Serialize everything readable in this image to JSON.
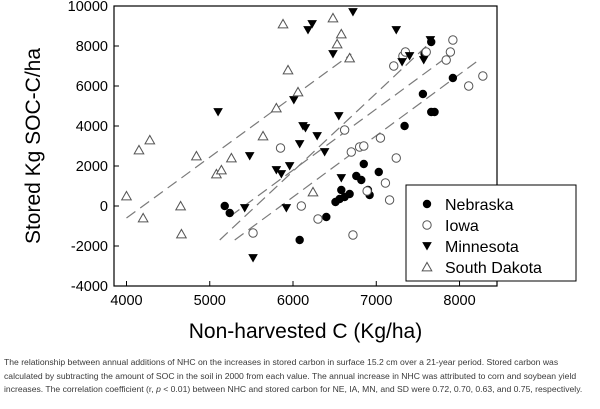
{
  "chart_data": {
    "type": "scatter",
    "xlabel": "Non-harvested C (Kg/ha)",
    "ylabel": "Stored Kg SOC-C/ha",
    "xlim": [
      3850,
      8450
    ],
    "ylim": [
      -4000,
      10000
    ],
    "x_ticks": [
      4000,
      5000,
      6000,
      7000,
      8000
    ],
    "y_ticks": [
      -4000,
      -2000,
      0,
      2000,
      4000,
      6000,
      8000,
      10000
    ],
    "legend_position": "bottom-right",
    "series": [
      {
        "name": "Nebraska",
        "marker": "filled-circle",
        "points": [
          [
            5180,
            0
          ],
          [
            5240,
            -350
          ],
          [
            6080,
            -1700
          ],
          [
            6400,
            -550
          ],
          [
            6510,
            200
          ],
          [
            6560,
            350
          ],
          [
            6580,
            800
          ],
          [
            6620,
            450
          ],
          [
            6680,
            600
          ],
          [
            6760,
            1500
          ],
          [
            6820,
            1300
          ],
          [
            6850,
            2100
          ],
          [
            6900,
            800
          ],
          [
            6920,
            550
          ],
          [
            7030,
            1700
          ],
          [
            7340,
            4000
          ],
          [
            7560,
            5600
          ],
          [
            7660,
            4700
          ],
          [
            7700,
            4700
          ],
          [
            7920,
            6400
          ],
          [
            7580,
            7600
          ],
          [
            7660,
            8200
          ]
        ],
        "fit": [
          [
            5120,
            -1700
          ],
          [
            7680,
            8300
          ]
        ]
      },
      {
        "name": "Iowa",
        "marker": "open-circle",
        "points": [
          [
            5520,
            -1350
          ],
          [
            5850,
            2900
          ],
          [
            6100,
            0
          ],
          [
            6300,
            -650
          ],
          [
            6620,
            3800
          ],
          [
            6700,
            2700
          ],
          [
            6720,
            -1450
          ],
          [
            6800,
            2950
          ],
          [
            6850,
            3000
          ],
          [
            6890,
            750
          ],
          [
            7050,
            3400
          ],
          [
            7110,
            1150
          ],
          [
            7160,
            300
          ],
          [
            7210,
            7000
          ],
          [
            7240,
            2400
          ],
          [
            7320,
            7500
          ],
          [
            7350,
            7700
          ],
          [
            7600,
            7700
          ],
          [
            7840,
            7300
          ],
          [
            7890,
            7700
          ],
          [
            7920,
            8300
          ],
          [
            8110,
            6000
          ],
          [
            8280,
            6500
          ]
        ],
        "fit": [
          [
            5300,
            -1700
          ],
          [
            8200,
            7200
          ]
        ]
      },
      {
        "name": "Minnesota",
        "marker": "filled-triangle-down",
        "points": [
          [
            5100,
            4700
          ],
          [
            5420,
            -100
          ],
          [
            5480,
            2500
          ],
          [
            5520,
            -2600
          ],
          [
            5800,
            1800
          ],
          [
            5860,
            1600
          ],
          [
            5920,
            -100
          ],
          [
            5960,
            2000
          ],
          [
            6010,
            5300
          ],
          [
            6080,
            3100
          ],
          [
            6120,
            4000
          ],
          [
            6150,
            3900
          ],
          [
            6180,
            8800
          ],
          [
            6230,
            9100
          ],
          [
            6290,
            3500
          ],
          [
            6380,
            2700
          ],
          [
            6480,
            7600
          ],
          [
            6550,
            4500
          ],
          [
            6580,
            1400
          ],
          [
            6720,
            9700
          ],
          [
            7240,
            8800
          ],
          [
            7310,
            7200
          ],
          [
            7400,
            7500
          ],
          [
            7570,
            7300
          ],
          [
            7650,
            8300
          ]
        ],
        "fit": [
          [
            5250,
            -500
          ],
          [
            7800,
            7300
          ]
        ]
      },
      {
        "name": "South Dakota",
        "marker": "open-triangle-up",
        "points": [
          [
            4000,
            500
          ],
          [
            4150,
            2800
          ],
          [
            4200,
            -600
          ],
          [
            4280,
            3300
          ],
          [
            4650,
            0
          ],
          [
            4660,
            -1400
          ],
          [
            4840,
            2500
          ],
          [
            5080,
            1600
          ],
          [
            5140,
            1800
          ],
          [
            5260,
            2400
          ],
          [
            5640,
            3500
          ],
          [
            5800,
            4900
          ],
          [
            5880,
            9100
          ],
          [
            5940,
            6800
          ],
          [
            6060,
            5700
          ],
          [
            6240,
            700
          ],
          [
            6480,
            9400
          ],
          [
            6530,
            8100
          ],
          [
            6580,
            8600
          ],
          [
            6680,
            7400
          ]
        ],
        "fit": [
          [
            4000,
            -600
          ],
          [
            6700,
            7600
          ]
        ]
      }
    ]
  },
  "caption": {
    "sentence_1": "The relationship between annual additions of NHC on the increases in stored carbon in surface 15.2 cm over a 21-year period. Stored carbon was calculated by subtracting the amount of SOC in the soil in 2000 from each value. The annual increase in NHC was attributed to corn and soybean yield increases. The correlation coefficient (r,",
    "p_symbol": "p",
    "sentence_2": " < 0.01) between NHC and stored carbon for NE, IA, MN, and SD were 0.72, 0.70, 0.63, and 0.75, respectively."
  }
}
